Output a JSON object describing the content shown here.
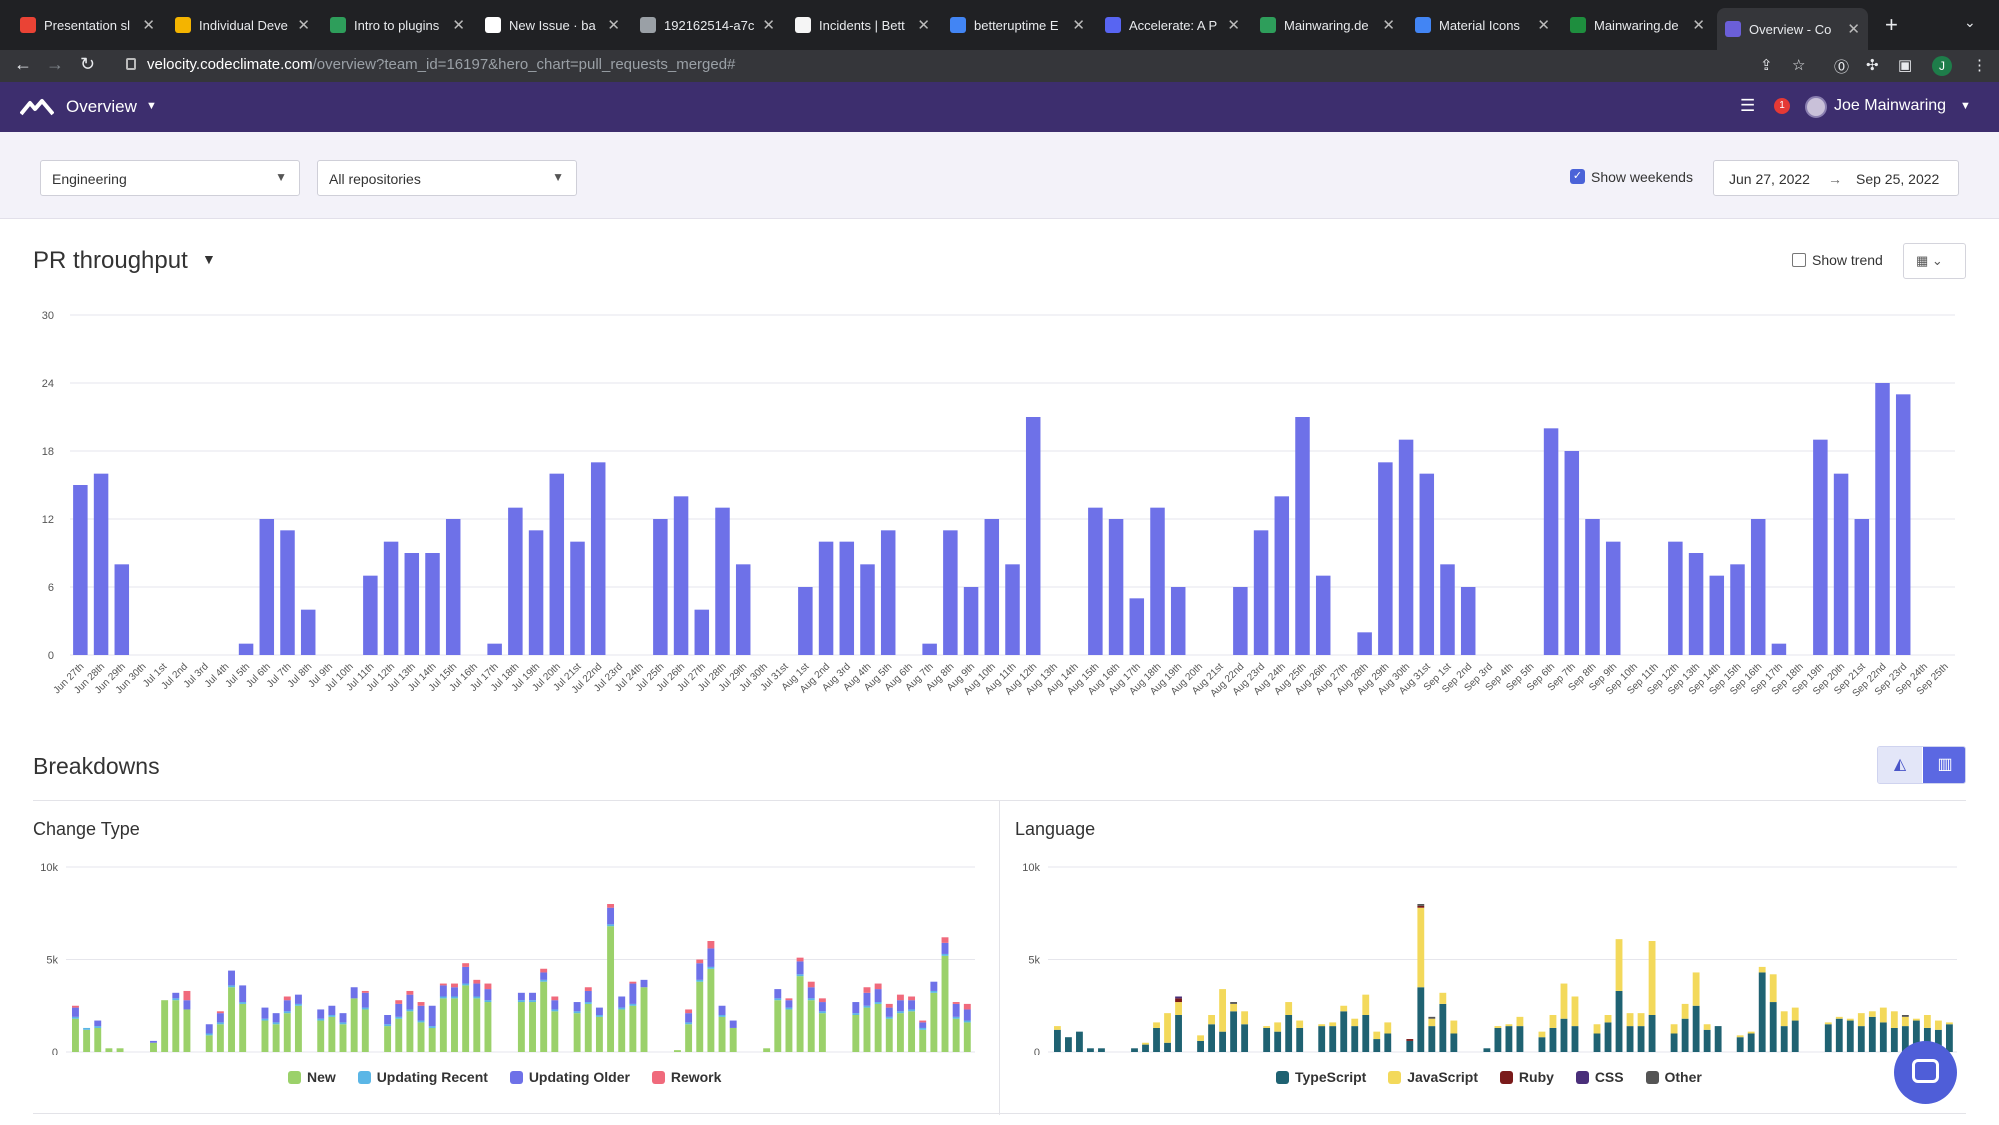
{
  "browser": {
    "tabs": [
      {
        "title": "Presentation sl",
        "icon": "gmail-icon",
        "color": "#ea4335"
      },
      {
        "title": "Individual Deve",
        "icon": "slides-icon",
        "color": "#f4b400"
      },
      {
        "title": "Intro to plugins",
        "icon": "leaf-icon",
        "color": "#2e9e5b"
      },
      {
        "title": "New Issue · ba",
        "icon": "github-icon",
        "color": "#ffffff"
      },
      {
        "title": "192162514-a7c",
        "icon": "globe-icon",
        "color": "#9aa0a6"
      },
      {
        "title": "Incidents | Bett",
        "icon": "bolt-icon",
        "color": "#f5f5f5"
      },
      {
        "title": "betteruptime E",
        "icon": "google-icon",
        "color": "#4285f4"
      },
      {
        "title": "Accelerate: A P",
        "icon": "ring-icon",
        "color": "#5865f2"
      },
      {
        "title": "Mainwaring.de",
        "icon": "leaf-icon",
        "color": "#2e9e5b"
      },
      {
        "title": "Material Icons",
        "icon": "material-icon",
        "color": "#4285f4"
      },
      {
        "title": "Mainwaring.de",
        "icon": "check-icon",
        "color": "#1e8e3e"
      },
      {
        "title": "Overview - Co",
        "icon": "codeclimate-icon",
        "color": "#6b5fd8",
        "active": true
      }
    ],
    "url_host": "velocity.codeclimate.com",
    "url_path": "/overview?team_id=16197&hero_chart=pull_requests_merged#",
    "profile_initial": "J"
  },
  "app": {
    "title": "Overview",
    "notification_count": "1",
    "user_name": "Joe Mainwaring"
  },
  "filters": {
    "team": "Engineering",
    "repositories": "All repositories",
    "show_weekends_label": "Show weekends",
    "date_start": "Jun 27, 2022",
    "date_end": "Sep 25, 2022",
    "arrow": "→"
  },
  "pr": {
    "title": "PR throughput",
    "show_trend_label": "Show trend"
  },
  "breakdowns": {
    "title": "Breakdowns",
    "change_type_title": "Change Type",
    "language_title": "Language"
  },
  "colors": {
    "bar": "#6e71e8",
    "new": "#9bd16a",
    "updating_recent": "#5bb6e6",
    "updating_older": "#6e71e8",
    "rework": "#f06a7c",
    "typescript": "#1f6272",
    "javascript": "#f3d95b",
    "ruby": "#7a1a1a",
    "css": "#4a2f7a",
    "other": "#555555"
  },
  "chart_data": [
    {
      "type": "bar",
      "title": "PR throughput",
      "categories": [
        "Jun 27th",
        "Jun 28th",
        "Jun 29th",
        "Jun 30th",
        "Jul 1st",
        "Jul 2nd",
        "Jul 3rd",
        "Jul 4th",
        "Jul 5th",
        "Jul 6th",
        "Jul 7th",
        "Jul 8th",
        "Jul 9th",
        "Jul 10th",
        "Jul 11th",
        "Jul 12th",
        "Jul 13th",
        "Jul 14th",
        "Jul 15th",
        "Jul 16th",
        "Jul 17th",
        "Jul 18th",
        "Jul 19th",
        "Jul 20th",
        "Jul 21st",
        "Jul 22nd",
        "Jul 23rd",
        "Jul 24th",
        "Jul 25th",
        "Jul 26th",
        "Jul 27th",
        "Jul 28th",
        "Jul 29th",
        "Jul 30th",
        "Jul 31st",
        "Aug 1st",
        "Aug 2nd",
        "Aug 3rd",
        "Aug 4th",
        "Aug 5th",
        "Aug 6th",
        "Aug 7th",
        "Aug 8th",
        "Aug 9th",
        "Aug 10th",
        "Aug 11th",
        "Aug 12th",
        "Aug 13th",
        "Aug 14th",
        "Aug 15th",
        "Aug 16th",
        "Aug 17th",
        "Aug 18th",
        "Aug 19th",
        "Aug 20th",
        "Aug 21st",
        "Aug 22nd",
        "Aug 23rd",
        "Aug 24th",
        "Aug 25th",
        "Aug 26th",
        "Aug 27th",
        "Aug 28th",
        "Aug 29th",
        "Aug 30th",
        "Aug 31st",
        "Sep 1st",
        "Sep 2nd",
        "Sep 3rd",
        "Sep 4th",
        "Sep 5th",
        "Sep 6th",
        "Sep 7th",
        "Sep 8th",
        "Sep 9th",
        "Sep 10th",
        "Sep 11th",
        "Sep 12th",
        "Sep 13th",
        "Sep 14th",
        "Sep 15th",
        "Sep 16th",
        "Sep 17th",
        "Sep 18th",
        "Sep 19th",
        "Sep 20th",
        "Sep 21st",
        "Sep 22nd",
        "Sep 23rd",
        "Sep 24th",
        "Sep 25th"
      ],
      "values": [
        15,
        16,
        8,
        0,
        0,
        0,
        0,
        0,
        1,
        12,
        11,
        4,
        0,
        0,
        7,
        10,
        9,
        9,
        12,
        0,
        1,
        13,
        11,
        16,
        10,
        17,
        0,
        0,
        12,
        14,
        4,
        13,
        8,
        0,
        0,
        6,
        10,
        10,
        8,
        11,
        0,
        1,
        11,
        6,
        12,
        8,
        21,
        0,
        0,
        13,
        12,
        5,
        13,
        6,
        0,
        0,
        6,
        11,
        14,
        21,
        7,
        0,
        2,
        17,
        19,
        16,
        8,
        6,
        0,
        0,
        0,
        20,
        18,
        12,
        10,
        0,
        0,
        10,
        9,
        7,
        8,
        12,
        1,
        0,
        19,
        16,
        12,
        24,
        23,
        0,
        0
      ],
      "yticks": [
        0,
        6,
        12,
        18,
        24,
        30
      ],
      "ylim": [
        0,
        30
      ]
    },
    {
      "type": "bar",
      "stacked": true,
      "title": "Change Type",
      "yticks": [
        "0",
        "5k",
        "10k"
      ],
      "ylim": [
        0,
        10000
      ],
      "series": [
        {
          "name": "New",
          "values": [
            1800,
            1200,
            1300,
            200,
            200,
            0,
            0,
            500,
            2800,
            2800,
            2300,
            0,
            900,
            1500,
            3500,
            2600,
            0,
            1700,
            1500,
            2100,
            2500,
            0,
            1700,
            1900,
            1500,
            2900,
            2300,
            0,
            1400,
            1800,
            2200,
            1600,
            1300,
            2900,
            2900,
            3600,
            2900,
            2700,
            0,
            0,
            2700,
            2700,
            3800,
            2200,
            0,
            2100,
            2600,
            1900,
            6800,
            2300,
            2500,
            3500,
            0,
            0,
            100,
            1500,
            3800,
            4500,
            1900,
            1300,
            0,
            0,
            200,
            2800,
            2300,
            4100,
            2800,
            2100,
            0,
            0,
            2000,
            2400,
            2600,
            1800,
            2100,
            2200,
            1200,
            3200,
            5200,
            1800,
            1600
          ]
        },
        {
          "name": "Updating Recent",
          "values": [
            100,
            100,
            100,
            0,
            0,
            0,
            0,
            0,
            0,
            100,
            0,
            0,
            100,
            100,
            100,
            100,
            0,
            100,
            100,
            100,
            100,
            0,
            100,
            100,
            100,
            0,
            100,
            0,
            100,
            100,
            100,
            100,
            100,
            100,
            100,
            100,
            100,
            100,
            0,
            0,
            100,
            100,
            100,
            100,
            0,
            100,
            100,
            100,
            100,
            100,
            100,
            0,
            0,
            0,
            0,
            100,
            100,
            100,
            100,
            0,
            0,
            0,
            0,
            100,
            100,
            100,
            100,
            100,
            0,
            0,
            100,
            100,
            100,
            100,
            100,
            100,
            100,
            100,
            100,
            100,
            100
          ]
        },
        {
          "name": "Updating Older",
          "values": [
            500,
            0,
            300,
            0,
            0,
            0,
            0,
            100,
            0,
            300,
            500,
            0,
            500,
            500,
            800,
            900,
            0,
            600,
            500,
            600,
            500,
            0,
            500,
            500,
            500,
            600,
            800,
            0,
            500,
            700,
            800,
            800,
            1100,
            600,
            500,
            900,
            700,
            600,
            0,
            0,
            400,
            400,
            400,
            500,
            0,
            500,
            600,
            400,
            900,
            600,
            1100,
            400,
            0,
            0,
            0,
            500,
            900,
            1000,
            500,
            400,
            0,
            0,
            0,
            500,
            400,
            700,
            600,
            500,
            0,
            0,
            600,
            700,
            700,
            500,
            600,
            500,
            300,
            500,
            600,
            700,
            600
          ]
        },
        {
          "name": "Rework",
          "values": [
            100,
            0,
            0,
            0,
            0,
            0,
            0,
            0,
            0,
            0,
            500,
            0,
            0,
            100,
            0,
            0,
            0,
            0,
            0,
            200,
            0,
            0,
            0,
            0,
            0,
            0,
            100,
            0,
            0,
            200,
            200,
            200,
            0,
            100,
            200,
            200,
            200,
            300,
            0,
            0,
            0,
            0,
            200,
            200,
            0,
            0,
            200,
            0,
            200,
            0,
            100,
            0,
            0,
            0,
            0,
            200,
            200,
            400,
            0,
            0,
            0,
            0,
            0,
            0,
            100,
            200,
            300,
            200,
            0,
            0,
            0,
            300,
            300,
            200,
            300,
            200,
            100,
            0,
            300,
            100,
            300
          ]
        }
      ]
    },
    {
      "type": "bar",
      "stacked": true,
      "title": "Language",
      "yticks": [
        "0",
        "5k",
        "10k"
      ],
      "ylim": [
        0,
        10000
      ],
      "series": [
        {
          "name": "TypeScript",
          "values": [
            1200,
            800,
            1100,
            200,
            200,
            0,
            0,
            200,
            400,
            1300,
            500,
            2000,
            0,
            600,
            1500,
            1100,
            2200,
            1500,
            0,
            1300,
            1100,
            2000,
            1300,
            0,
            1400,
            1400,
            2200,
            1400,
            2000,
            700,
            1000,
            0,
            600,
            3500,
            1400,
            2600,
            1000,
            0,
            0,
            200,
            1300,
            1400,
            1400,
            0,
            800,
            1300,
            1800,
            1400,
            0,
            1000,
            1600,
            3300,
            1400,
            1400,
            2000,
            0,
            1000,
            1800,
            2500,
            1200,
            1400,
            0,
            800,
            1000,
            4300,
            2700,
            1400,
            1700,
            0,
            0,
            1500,
            1800,
            1700,
            1400,
            1900,
            1600,
            1300,
            1400,
            1700,
            1300,
            1200,
            1500
          ]
        },
        {
          "name": "JavaScript",
          "values": [
            200,
            0,
            0,
            0,
            0,
            0,
            0,
            0,
            100,
            300,
            1600,
            700,
            0,
            300,
            500,
            2300,
            400,
            700,
            0,
            100,
            500,
            700,
            400,
            0,
            100,
            200,
            300,
            400,
            1100,
            400,
            600,
            0,
            0,
            4300,
            400,
            600,
            700,
            0,
            0,
            0,
            100,
            100,
            500,
            0,
            300,
            700,
            1900,
            1600,
            0,
            500,
            400,
            2800,
            700,
            700,
            4000,
            0,
            500,
            800,
            1800,
            300,
            0,
            0,
            100,
            100,
            300,
            1500,
            800,
            700,
            0,
            0,
            100,
            100,
            100,
            700,
            300,
            800,
            900,
            500,
            100,
            700,
            500,
            100
          ]
        },
        {
          "name": "Ruby",
          "values": [
            0,
            0,
            0,
            0,
            0,
            0,
            0,
            0,
            0,
            0,
            0,
            200,
            0,
            0,
            0,
            0,
            0,
            0,
            0,
            0,
            0,
            0,
            0,
            0,
            0,
            0,
            0,
            0,
            0,
            0,
            0,
            0,
            100,
            100,
            0,
            0,
            0,
            0,
            0,
            0,
            0,
            0,
            0,
            0,
            0,
            0,
            0,
            0,
            0,
            0,
            0,
            0,
            0,
            0,
            0,
            0,
            0,
            0,
            0,
            0,
            0,
            0,
            0,
            0,
            0,
            0,
            0,
            0,
            0,
            0,
            0,
            0,
            0,
            0,
            0,
            0,
            0,
            0,
            0,
            0,
            0
          ]
        },
        {
          "name": "CSS",
          "values": [
            0,
            0,
            0,
            0,
            0,
            0,
            0,
            0,
            0,
            0,
            0,
            100,
            0,
            0,
            0,
            0,
            0,
            0,
            0,
            0,
            0,
            0,
            0,
            0,
            0,
            0,
            0,
            0,
            0,
            0,
            0,
            0,
            0,
            0,
            0,
            0,
            0,
            0,
            0,
            0,
            0,
            0,
            0,
            0,
            0,
            0,
            0,
            0,
            0,
            0,
            0,
            0,
            0,
            0,
            0,
            0,
            0,
            0,
            0,
            0,
            0,
            0,
            0,
            0,
            0,
            0,
            0,
            0,
            0,
            0,
            0,
            0,
            0,
            0,
            0,
            0,
            0,
            0,
            0,
            0,
            0,
            0
          ]
        },
        {
          "name": "Other",
          "values": [
            0,
            0,
            0,
            0,
            0,
            0,
            0,
            0,
            0,
            0,
            0,
            0,
            0,
            0,
            0,
            0,
            100,
            0,
            0,
            0,
            0,
            0,
            0,
            0,
            0,
            0,
            0,
            0,
            0,
            0,
            0,
            0,
            0,
            100,
            100,
            0,
            0,
            0,
            0,
            0,
            0,
            0,
            0,
            0,
            0,
            0,
            0,
            0,
            0,
            0,
            0,
            0,
            0,
            0,
            0,
            0,
            0,
            0,
            0,
            0,
            0,
            0,
            0,
            0,
            0,
            0,
            0,
            0,
            0,
            0,
            0,
            0,
            0,
            0,
            0,
            0,
            0,
            100,
            0,
            0,
            0,
            0
          ]
        }
      ]
    }
  ]
}
